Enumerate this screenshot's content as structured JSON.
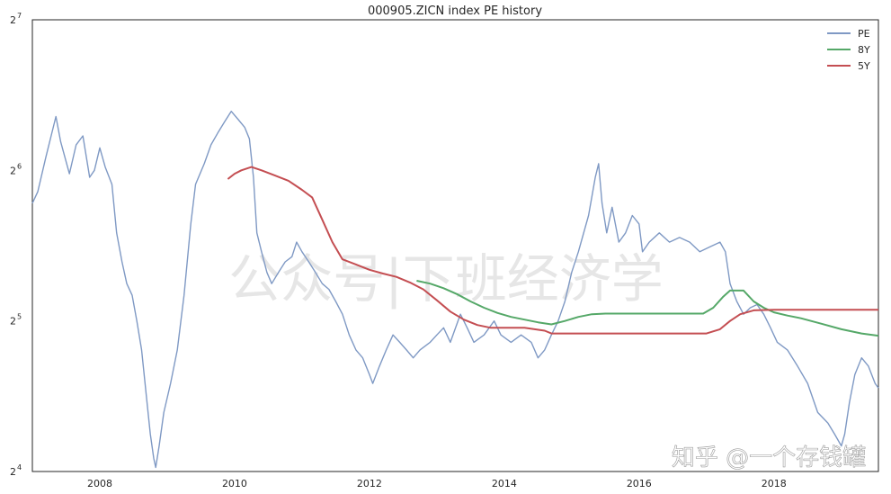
{
  "watermark": {
    "center": "公众号|下班经济学",
    "corner": "知乎 @一个存钱罐"
  },
  "chart_data": {
    "type": "line",
    "title": "000905.ZICN index PE history",
    "xlabel": "",
    "ylabel": "",
    "y_scale": "log2",
    "ylim": [
      16,
      128
    ],
    "xlim": [
      2007.0,
      2019.55
    ],
    "grid": false,
    "legend_position": "top-right",
    "x_ticks": [
      {
        "value": 2008,
        "label": "2008"
      },
      {
        "value": 2010,
        "label": "2010"
      },
      {
        "value": 2012,
        "label": "2012"
      },
      {
        "value": 2014,
        "label": "2014"
      },
      {
        "value": 2016,
        "label": "2016"
      },
      {
        "value": 2018,
        "label": "2018"
      }
    ],
    "y_ticks": [
      {
        "value": 16,
        "base": "2",
        "exp": "4"
      },
      {
        "value": 32,
        "base": "2",
        "exp": "5"
      },
      {
        "value": 64,
        "base": "2",
        "exp": "6"
      },
      {
        "value": 128,
        "base": "2",
        "exp": "7"
      }
    ],
    "series": [
      {
        "name": "PE",
        "color": "#7f99c4",
        "points": [
          [
            2007.0,
            55
          ],
          [
            2007.08,
            58
          ],
          [
            2007.2,
            68
          ],
          [
            2007.35,
            82
          ],
          [
            2007.42,
            73
          ],
          [
            2007.55,
            63
          ],
          [
            2007.65,
            72
          ],
          [
            2007.75,
            75
          ],
          [
            2007.85,
            62
          ],
          [
            2007.92,
            64
          ],
          [
            2008.0,
            71
          ],
          [
            2008.08,
            65
          ],
          [
            2008.18,
            60
          ],
          [
            2008.25,
            48
          ],
          [
            2008.33,
            42
          ],
          [
            2008.4,
            38
          ],
          [
            2008.48,
            36
          ],
          [
            2008.55,
            32
          ],
          [
            2008.62,
            28
          ],
          [
            2008.7,
            22
          ],
          [
            2008.75,
            19
          ],
          [
            2008.8,
            17
          ],
          [
            2008.83,
            16.3
          ],
          [
            2008.88,
            18
          ],
          [
            2008.95,
            21
          ],
          [
            2009.05,
            24
          ],
          [
            2009.15,
            28
          ],
          [
            2009.25,
            36
          ],
          [
            2009.35,
            50
          ],
          [
            2009.42,
            60
          ],
          [
            2009.55,
            66
          ],
          [
            2009.65,
            72
          ],
          [
            2009.75,
            76
          ],
          [
            2009.85,
            80
          ],
          [
            2009.95,
            84
          ],
          [
            2010.05,
            81
          ],
          [
            2010.15,
            78
          ],
          [
            2010.22,
            74
          ],
          [
            2010.28,
            62
          ],
          [
            2010.33,
            48
          ],
          [
            2010.4,
            44
          ],
          [
            2010.48,
            40
          ],
          [
            2010.55,
            38
          ],
          [
            2010.65,
            40
          ],
          [
            2010.75,
            42
          ],
          [
            2010.85,
            43
          ],
          [
            2010.92,
            46
          ],
          [
            2011.0,
            44
          ],
          [
            2011.1,
            42
          ],
          [
            2011.2,
            40
          ],
          [
            2011.3,
            38
          ],
          [
            2011.4,
            37
          ],
          [
            2011.5,
            35
          ],
          [
            2011.6,
            33
          ],
          [
            2011.7,
            30
          ],
          [
            2011.8,
            28
          ],
          [
            2011.9,
            27
          ],
          [
            2012.0,
            25
          ],
          [
            2012.05,
            24
          ],
          [
            2012.15,
            26
          ],
          [
            2012.25,
            28
          ],
          [
            2012.35,
            30
          ],
          [
            2012.45,
            29
          ],
          [
            2012.55,
            28
          ],
          [
            2012.65,
            27
          ],
          [
            2012.75,
            28
          ],
          [
            2012.9,
            29
          ],
          [
            2013.0,
            30
          ],
          [
            2013.1,
            31
          ],
          [
            2013.2,
            29
          ],
          [
            2013.35,
            33
          ],
          [
            2013.45,
            31
          ],
          [
            2013.55,
            29
          ],
          [
            2013.7,
            30
          ],
          [
            2013.85,
            32
          ],
          [
            2013.95,
            30
          ],
          [
            2014.1,
            29
          ],
          [
            2014.25,
            30
          ],
          [
            2014.4,
            29
          ],
          [
            2014.5,
            27
          ],
          [
            2014.6,
            28
          ],
          [
            2014.7,
            30
          ],
          [
            2014.8,
            32
          ],
          [
            2014.9,
            35
          ],
          [
            2015.0,
            40
          ],
          [
            2015.1,
            44
          ],
          [
            2015.25,
            52
          ],
          [
            2015.35,
            62
          ],
          [
            2015.4,
            66
          ],
          [
            2015.45,
            55
          ],
          [
            2015.52,
            48
          ],
          [
            2015.6,
            54
          ],
          [
            2015.7,
            46
          ],
          [
            2015.8,
            48
          ],
          [
            2015.9,
            52
          ],
          [
            2016.0,
            50
          ],
          [
            2016.05,
            44
          ],
          [
            2016.15,
            46
          ],
          [
            2016.3,
            48
          ],
          [
            2016.45,
            46
          ],
          [
            2016.6,
            47
          ],
          [
            2016.75,
            46
          ],
          [
            2016.9,
            44
          ],
          [
            2017.05,
            45
          ],
          [
            2017.2,
            46
          ],
          [
            2017.28,
            44
          ],
          [
            2017.35,
            38
          ],
          [
            2017.45,
            35
          ],
          [
            2017.55,
            33
          ],
          [
            2017.65,
            34
          ],
          [
            2017.75,
            34.5
          ],
          [
            2017.85,
            33
          ],
          [
            2017.95,
            31
          ],
          [
            2018.05,
            29
          ],
          [
            2018.2,
            28
          ],
          [
            2018.35,
            26
          ],
          [
            2018.5,
            24
          ],
          [
            2018.65,
            21
          ],
          [
            2018.8,
            20
          ],
          [
            2018.9,
            19
          ],
          [
            2019.0,
            18
          ],
          [
            2019.05,
            19
          ],
          [
            2019.12,
            22
          ],
          [
            2019.2,
            25
          ],
          [
            2019.3,
            27
          ],
          [
            2019.4,
            26
          ],
          [
            2019.5,
            24
          ],
          [
            2019.55,
            23.5
          ]
        ]
      },
      {
        "name": "8Y",
        "color": "#55a868",
        "points": [
          [
            2012.7,
            38.5
          ],
          [
            2012.9,
            38.0
          ],
          [
            2013.1,
            37.2
          ],
          [
            2013.3,
            36.2
          ],
          [
            2013.5,
            35.0
          ],
          [
            2013.7,
            34.0
          ],
          [
            2013.9,
            33.2
          ],
          [
            2014.1,
            32.6
          ],
          [
            2014.3,
            32.2
          ],
          [
            2014.5,
            31.8
          ],
          [
            2014.7,
            31.5
          ],
          [
            2014.9,
            32.0
          ],
          [
            2015.1,
            32.6
          ],
          [
            2015.3,
            33.0
          ],
          [
            2015.5,
            33.1
          ],
          [
            2015.8,
            33.1
          ],
          [
            2016.2,
            33.1
          ],
          [
            2016.6,
            33.1
          ],
          [
            2016.95,
            33.1
          ],
          [
            2017.1,
            34.0
          ],
          [
            2017.25,
            35.8
          ],
          [
            2017.35,
            36.8
          ],
          [
            2017.55,
            36.8
          ],
          [
            2017.7,
            35.0
          ],
          [
            2017.85,
            34.0
          ],
          [
            2018.0,
            33.3
          ],
          [
            2018.2,
            32.8
          ],
          [
            2018.4,
            32.4
          ],
          [
            2018.7,
            31.6
          ],
          [
            2019.0,
            30.8
          ],
          [
            2019.3,
            30.2
          ],
          [
            2019.55,
            29.9
          ]
        ]
      },
      {
        "name": "5Y",
        "color": "#c44e52",
        "points": [
          [
            2009.9,
            61.5
          ],
          [
            2010.0,
            63.0
          ],
          [
            2010.1,
            64.0
          ],
          [
            2010.25,
            65.0
          ],
          [
            2010.4,
            64.0
          ],
          [
            2010.6,
            62.5
          ],
          [
            2010.8,
            61.0
          ],
          [
            2011.0,
            58.5
          ],
          [
            2011.15,
            56.5
          ],
          [
            2011.3,
            51.0
          ],
          [
            2011.45,
            46.0
          ],
          [
            2011.6,
            42.5
          ],
          [
            2011.8,
            41.5
          ],
          [
            2012.0,
            40.5
          ],
          [
            2012.2,
            39.8
          ],
          [
            2012.4,
            39.2
          ],
          [
            2012.6,
            38.2
          ],
          [
            2012.8,
            37.0
          ],
          [
            2013.0,
            35.2
          ],
          [
            2013.2,
            33.4
          ],
          [
            2013.4,
            32.2
          ],
          [
            2013.6,
            31.4
          ],
          [
            2013.8,
            31.0
          ],
          [
            2014.0,
            31.0
          ],
          [
            2014.3,
            31.0
          ],
          [
            2014.6,
            30.6
          ],
          [
            2014.7,
            30.2
          ],
          [
            2015.0,
            30.2
          ],
          [
            2015.5,
            30.2
          ],
          [
            2016.0,
            30.2
          ],
          [
            2016.5,
            30.2
          ],
          [
            2017.0,
            30.2
          ],
          [
            2017.2,
            30.8
          ],
          [
            2017.35,
            32.0
          ],
          [
            2017.5,
            33.0
          ],
          [
            2017.7,
            33.6
          ],
          [
            2018.0,
            33.7
          ],
          [
            2018.5,
            33.7
          ],
          [
            2019.0,
            33.7
          ],
          [
            2019.55,
            33.7
          ]
        ]
      }
    ]
  }
}
